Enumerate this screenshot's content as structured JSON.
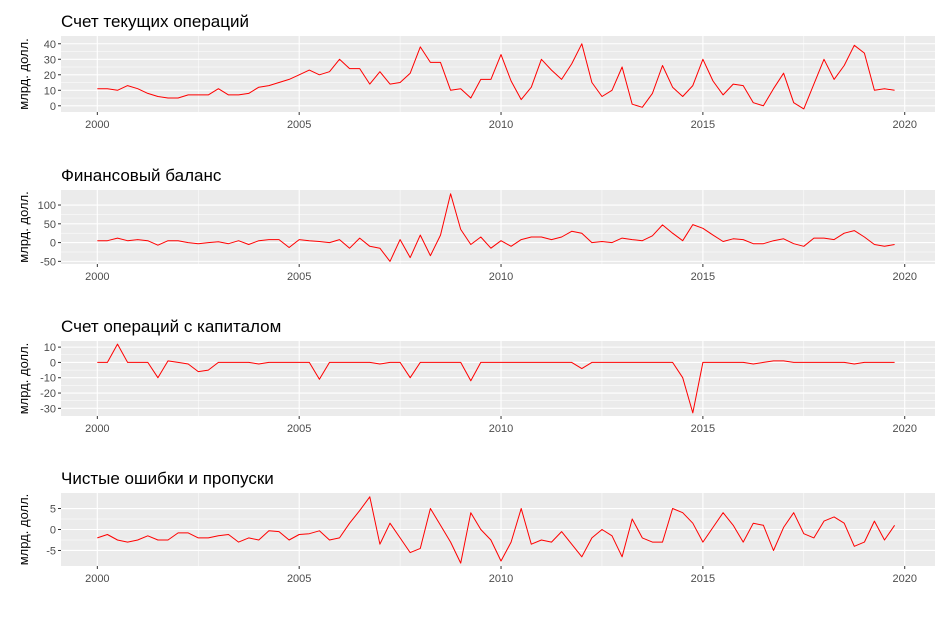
{
  "chart_data": [
    {
      "type": "line",
      "title": "Счет текущих операций",
      "ylabel": "млрд. долл.",
      "xlabel": "",
      "xlim": [
        1999.1,
        2020.75
      ],
      "ylim": [
        -4,
        45
      ],
      "yticks": [
        0,
        10,
        20,
        30,
        40
      ],
      "xticks": [
        2000,
        2005,
        2010,
        2015,
        2020
      ],
      "grid": true,
      "color": "#ff0000",
      "series": [
        {
          "x": [
            2000.0,
            2000.25,
            2000.5,
            2000.75,
            2001.0,
            2001.25,
            2001.5,
            2001.75,
            2002.0,
            2002.25,
            2002.5,
            2002.75,
            2003.0,
            2003.25,
            2003.5,
            2003.75,
            2004.0,
            2004.25,
            2004.5,
            2004.75,
            2005.0,
            2005.25,
            2005.5,
            2005.75,
            2006.0,
            2006.25,
            2006.5,
            2006.75,
            2007.0,
            2007.25,
            2007.5,
            2007.75,
            2008.0,
            2008.25,
            2008.5,
            2008.75,
            2009.0,
            2009.25,
            2009.5,
            2009.75,
            2010.0,
            2010.25,
            2010.5,
            2010.75,
            2011.0,
            2011.25,
            2011.5,
            2011.75,
            2012.0,
            2012.25,
            2012.5,
            2012.75,
            2013.0,
            2013.25,
            2013.5,
            2013.75,
            2014.0,
            2014.25,
            2014.5,
            2014.75,
            2015.0,
            2015.25,
            2015.5,
            2015.75,
            2016.0,
            2016.25,
            2016.5,
            2016.75,
            2017.0,
            2017.25,
            2017.5,
            2017.75,
            2018.0,
            2018.25,
            2018.5,
            2018.75,
            2019.0,
            2019.25,
            2019.5,
            2019.75
          ],
          "y": [
            11,
            11,
            10,
            13,
            11,
            8,
            6,
            5,
            5,
            7,
            7,
            7,
            11,
            7,
            7,
            8,
            12,
            13,
            15,
            17,
            20,
            23,
            20,
            22,
            30,
            24,
            24,
            14,
            22,
            14,
            15,
            21,
            38,
            28,
            28,
            10,
            11,
            5,
            17,
            17,
            33,
            16,
            4,
            12,
            30,
            23,
            17,
            27,
            40,
            15,
            6,
            10,
            25,
            1,
            -1,
            8,
            26,
            12,
            6,
            13,
            30,
            16,
            7,
            14,
            13,
            2,
            0,
            11,
            21,
            2,
            -2,
            14,
            30,
            17,
            26,
            39,
            34,
            10,
            11,
            10
          ]
        }
      ]
    },
    {
      "type": "line",
      "title": "Финансовый баланс",
      "ylabel": "млрд. долл.",
      "xlabel": "",
      "xlim": [
        1999.1,
        2020.75
      ],
      "ylim": [
        -57,
        140
      ],
      "yticks": [
        -50,
        0,
        50,
        100
      ],
      "xticks": [
        2000,
        2005,
        2010,
        2015,
        2020
      ],
      "grid": true,
      "color": "#ff0000",
      "series": [
        {
          "x": [
            2000.0,
            2000.25,
            2000.5,
            2000.75,
            2001.0,
            2001.25,
            2001.5,
            2001.75,
            2002.0,
            2002.25,
            2002.5,
            2002.75,
            2003.0,
            2003.25,
            2003.5,
            2003.75,
            2004.0,
            2004.25,
            2004.5,
            2004.75,
            2005.0,
            2005.25,
            2005.5,
            2005.75,
            2006.0,
            2006.25,
            2006.5,
            2006.75,
            2007.0,
            2007.25,
            2007.5,
            2007.75,
            2008.0,
            2008.25,
            2008.5,
            2008.75,
            2009.0,
            2009.25,
            2009.5,
            2009.75,
            2010.0,
            2010.25,
            2010.5,
            2010.75,
            2011.0,
            2011.25,
            2011.5,
            2011.75,
            2012.0,
            2012.25,
            2012.5,
            2012.75,
            2013.0,
            2013.25,
            2013.5,
            2013.75,
            2014.0,
            2014.25,
            2014.5,
            2014.75,
            2015.0,
            2015.25,
            2015.5,
            2015.75,
            2016.0,
            2016.25,
            2016.5,
            2016.75,
            2017.0,
            2017.25,
            2017.5,
            2017.75,
            2018.0,
            2018.25,
            2018.5,
            2018.75,
            2019.0,
            2019.25,
            2019.5,
            2019.75
          ],
          "y": [
            5,
            5,
            12,
            5,
            8,
            5,
            -7,
            5,
            5,
            0,
            -3,
            0,
            2,
            -3,
            5,
            -5,
            5,
            8,
            8,
            -13,
            8,
            5,
            3,
            0,
            8,
            -15,
            12,
            -10,
            -15,
            -50,
            8,
            -40,
            20,
            -35,
            20,
            130,
            35,
            -5,
            15,
            -15,
            5,
            -10,
            8,
            15,
            15,
            8,
            15,
            30,
            25,
            0,
            3,
            0,
            12,
            8,
            5,
            18,
            47,
            25,
            5,
            48,
            38,
            20,
            3,
            10,
            8,
            -3,
            -3,
            5,
            10,
            -3,
            -10,
            12,
            12,
            8,
            25,
            32,
            15,
            -5,
            -10,
            -5
          ]
        }
      ]
    },
    {
      "type": "line",
      "title": "Счет операций с капиталом",
      "ylabel": "млрд. долл.",
      "xlabel": "",
      "xlim": [
        1999.1,
        2020.75
      ],
      "ylim": [
        -35,
        14
      ],
      "yticks": [
        -30,
        -20,
        -10,
        0,
        10
      ],
      "xticks": [
        2000,
        2005,
        2010,
        2015,
        2020
      ],
      "grid": true,
      "color": "#ff0000",
      "series": [
        {
          "x": [
            2000.0,
            2000.25,
            2000.5,
            2000.75,
            2001.0,
            2001.25,
            2001.5,
            2001.75,
            2002.0,
            2002.25,
            2002.5,
            2002.75,
            2003.0,
            2003.25,
            2003.5,
            2003.75,
            2004.0,
            2004.25,
            2004.5,
            2004.75,
            2005.0,
            2005.25,
            2005.5,
            2005.75,
            2006.0,
            2006.25,
            2006.5,
            2006.75,
            2007.0,
            2007.25,
            2007.5,
            2007.75,
            2008.0,
            2008.25,
            2008.5,
            2008.75,
            2009.0,
            2009.25,
            2009.5,
            2009.75,
            2010.0,
            2010.25,
            2010.5,
            2010.75,
            2011.0,
            2011.25,
            2011.5,
            2011.75,
            2012.0,
            2012.25,
            2012.5,
            2012.75,
            2013.0,
            2013.25,
            2013.5,
            2013.75,
            2014.0,
            2014.25,
            2014.5,
            2014.75,
            2015.0,
            2015.25,
            2015.5,
            2015.75,
            2016.0,
            2016.25,
            2016.5,
            2016.75,
            2017.0,
            2017.25,
            2017.5,
            2017.75,
            2018.0,
            2018.25,
            2018.5,
            2018.75,
            2019.0,
            2019.25,
            2019.5,
            2019.75
          ],
          "y": [
            0,
            0,
            12,
            0,
            0,
            0,
            -10,
            1,
            0,
            -1,
            -6,
            -5,
            0,
            0,
            0,
            0,
            -1,
            0,
            0,
            0,
            0,
            0,
            -11,
            0,
            0,
            0,
            0,
            0,
            -1,
            0,
            0,
            -10,
            0,
            0,
            0,
            0,
            0,
            -12,
            0,
            0,
            0,
            0,
            0,
            0,
            0,
            0,
            0,
            0,
            -4,
            0,
            0,
            0,
            0,
            0,
            0,
            0,
            0,
            0,
            -10,
            -33,
            0,
            0,
            0,
            0,
            0,
            -1,
            0,
            1,
            1,
            0,
            0,
            0,
            0,
            0,
            0,
            -1,
            0,
            0,
            0,
            0
          ]
        }
      ]
    },
    {
      "type": "line",
      "title": "Чистые ошибки и пропуски",
      "ylabel": "млрд. долл.",
      "xlabel": "",
      "xlim": [
        1999.1,
        2020.75
      ],
      "ylim": [
        -8.7,
        8.7
      ],
      "yticks": [
        -5,
        0,
        5
      ],
      "xticks": [
        2000,
        2005,
        2010,
        2015,
        2020
      ],
      "grid": true,
      "color": "#ff0000",
      "series": [
        {
          "x": [
            2000.0,
            2000.25,
            2000.5,
            2000.75,
            2001.0,
            2001.25,
            2001.5,
            2001.75,
            2002.0,
            2002.25,
            2002.5,
            2002.75,
            2003.0,
            2003.25,
            2003.5,
            2003.75,
            2004.0,
            2004.25,
            2004.5,
            2004.75,
            2005.0,
            2005.25,
            2005.5,
            2005.75,
            2006.0,
            2006.25,
            2006.5,
            2006.75,
            2007.0,
            2007.25,
            2007.5,
            2007.75,
            2008.0,
            2008.25,
            2008.5,
            2008.75,
            2009.0,
            2009.25,
            2009.5,
            2009.75,
            2010.0,
            2010.25,
            2010.5,
            2010.75,
            2011.0,
            2011.25,
            2011.5,
            2011.75,
            2012.0,
            2012.25,
            2012.5,
            2012.75,
            2013.0,
            2013.25,
            2013.5,
            2013.75,
            2014.0,
            2014.25,
            2014.5,
            2014.75,
            2015.0,
            2015.25,
            2015.5,
            2015.75,
            2016.0,
            2016.25,
            2016.5,
            2016.75,
            2017.0,
            2017.25,
            2017.5,
            2017.75,
            2018.0,
            2018.25,
            2018.5,
            2018.75,
            2019.0,
            2019.25,
            2019.5,
            2019.75
          ],
          "y": [
            -2,
            -1.2,
            -2.5,
            -3,
            -2.5,
            -1.5,
            -2.5,
            -2.5,
            -0.8,
            -0.8,
            -2,
            -2,
            -1.5,
            -1.2,
            -3,
            -2,
            -2.5,
            -0.3,
            -0.5,
            -2.5,
            -1.2,
            -1,
            -0.3,
            -2.5,
            -2,
            1.5,
            4.5,
            7.8,
            -3.5,
            1.5,
            -2,
            -5.5,
            -4.5,
            5,
            1,
            -3,
            -8,
            4,
            0,
            -2.5,
            -7.5,
            -3,
            5,
            -3.5,
            -2.5,
            -3,
            -0.5,
            -3.5,
            -6.5,
            -2,
            0,
            -1.5,
            -6.5,
            2.5,
            -2,
            -3,
            -3,
            5,
            4,
            1.5,
            -3,
            0.5,
            4,
            1,
            -3,
            1.5,
            1,
            -5,
            0.5,
            4,
            -1,
            -2,
            2,
            3,
            1.5,
            -4,
            -3,
            2,
            -2.5,
            1
          ]
        }
      ]
    }
  ]
}
